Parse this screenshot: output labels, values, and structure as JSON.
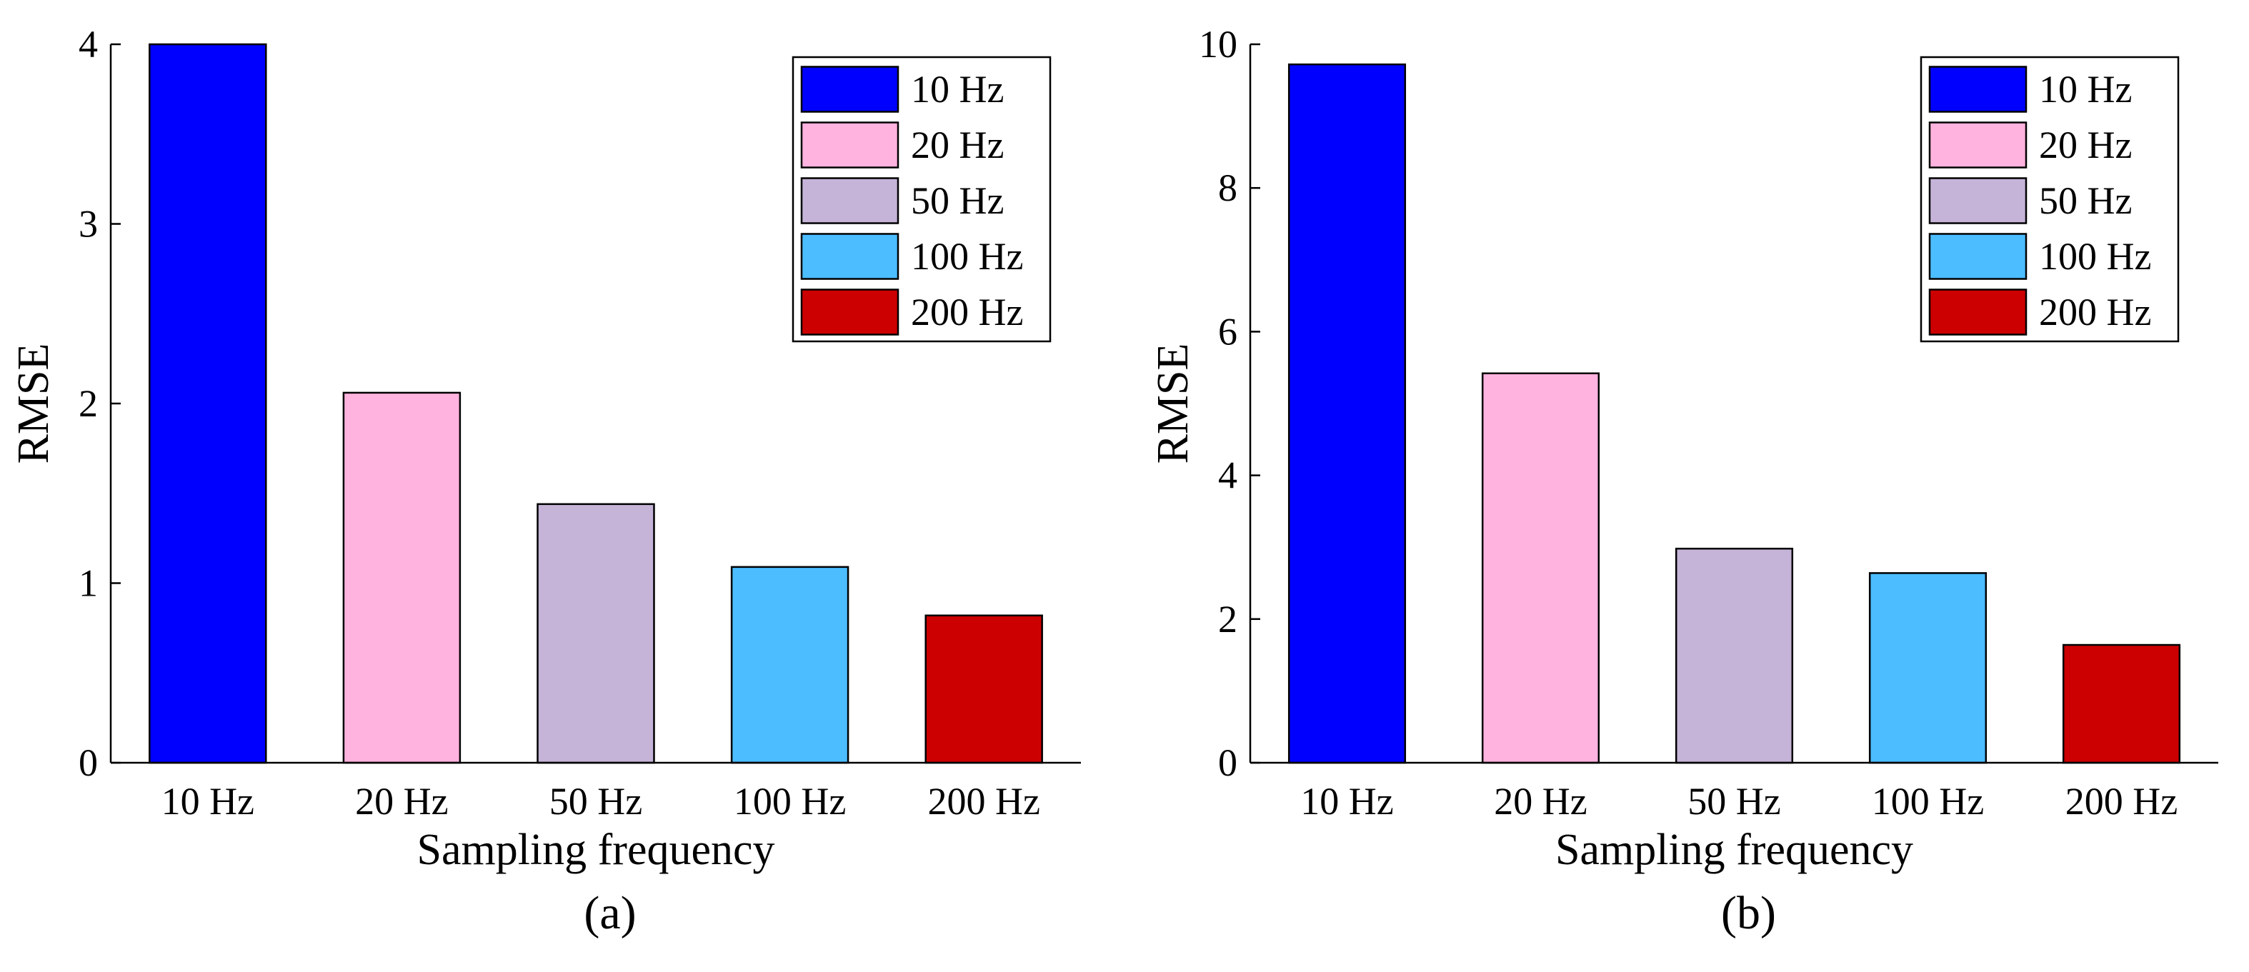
{
  "chart_data": [
    {
      "panel": "(a)",
      "type": "bar",
      "title": "",
      "xlabel": "Sampling frequency",
      "ylabel": "RMSE",
      "categories": [
        "10 Hz",
        "20 Hz",
        "50 Hz",
        "100 Hz",
        "200 Hz"
      ],
      "values": [
        4.0,
        2.06,
        1.44,
        1.09,
        0.82
      ],
      "colors": [
        "#0000FF",
        "#FFB3DE",
        "#C5B4D8",
        "#4CBDFF",
        "#CC0000"
      ],
      "ylim": [
        0,
        4
      ],
      "yticks": [
        0,
        1,
        2,
        3,
        4
      ],
      "grid": false,
      "legend": {
        "position": "top-right",
        "entries": [
          "10 Hz",
          "20 Hz",
          "50 Hz",
          "100 Hz",
          "200 Hz"
        ]
      }
    },
    {
      "panel": "(b)",
      "type": "bar",
      "title": "",
      "xlabel": "Sampling frequency",
      "ylabel": "RMSE",
      "categories": [
        "10 Hz",
        "20 Hz",
        "50 Hz",
        "100 Hz",
        "200 Hz"
      ],
      "values": [
        9.72,
        5.42,
        2.98,
        2.64,
        1.64
      ],
      "colors": [
        "#0000FF",
        "#FFB3DE",
        "#C5B4D8",
        "#4CBDFF",
        "#CC0000"
      ],
      "ylim": [
        0,
        10
      ],
      "yticks": [
        0,
        2,
        4,
        6,
        8,
        10
      ],
      "grid": false,
      "legend": {
        "position": "top-right",
        "entries": [
          "10 Hz",
          "20 Hz",
          "50 Hz",
          "100 Hz",
          "200 Hz"
        ]
      }
    }
  ]
}
